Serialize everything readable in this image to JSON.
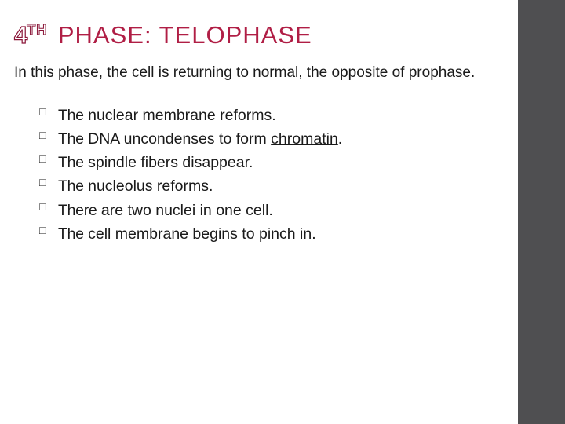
{
  "title": {
    "numeral": "4",
    "super": "TH",
    "rest": " PHASE: TELOPHASE",
    "outline_color": "#8a1538",
    "fill_color": "#b01e45",
    "fontsize": 31,
    "font_family": "Trebuchet MS"
  },
  "intro": {
    "text": "In this phase, the cell is returning to normal, the opposite of prophase.",
    "fontsize": 19,
    "color": "#1a1a1a"
  },
  "bullets": {
    "marker": "□",
    "fontsize": 19.5,
    "color": "#1a1a1a",
    "items": [
      {
        "lead": "The",
        "rest": " nuclear membrane reforms."
      },
      {
        "lead": "The",
        "rest_pre": " DNA uncondenses to form ",
        "underlined": "chromatin",
        "rest_post": "."
      },
      {
        "lead": "The",
        "rest": " spindle fibers disappear."
      },
      {
        "lead": "The",
        "rest": " nucleolus reforms."
      },
      {
        "lead": "There",
        "rest": " are two nuclei in one cell."
      },
      {
        "lead": "The",
        "rest": " cell membrane begins to pinch in."
      }
    ]
  },
  "layout": {
    "slide_width": 720,
    "slide_height": 540,
    "content_width": 660,
    "right_strip_width": 60,
    "right_strip_color": "#4f4f51",
    "background_color": "#ffffff"
  }
}
